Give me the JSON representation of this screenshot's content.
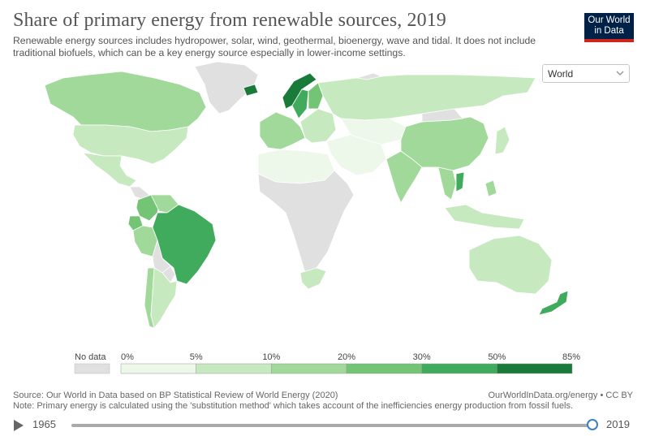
{
  "header": {
    "title": "Share of primary energy from renewable sources, 2019",
    "subtitle": "Renewable energy sources includes hydropower, solar, wind, geothermal, bioenergy, wave and tidal. It does not include traditional biofuels, which can be a key energy source especially in lower-income settings.",
    "logo_line1": "Our World",
    "logo_line2": "in Data"
  },
  "controls": {
    "entity_selected": "World"
  },
  "legend": {
    "no_data_label": "No data",
    "bins": [
      "0%",
      "5%",
      "10%",
      "20%",
      "30%",
      "50%",
      "85%"
    ],
    "colors": [
      "#eef8ea",
      "#c7e9c0",
      "#a1d99b",
      "#74c476",
      "#41ab5d",
      "#1a7a3a"
    ],
    "no_data_color": "#e0e0e0"
  },
  "footer": {
    "source": "Source: Our World in Data based on BP Statistical Review of World Energy (2020)",
    "url": "OurWorldInData.org/energy • CC BY",
    "note": "Note: Primary energy is calculated using the 'substitution method' which takes account of the inefficiencies energy production from fossil fuels."
  },
  "timeline": {
    "start_year": "1965",
    "end_year": "2019",
    "position": 1.0
  },
  "map_regions": [
    {
      "name": "canada",
      "level": 3
    },
    {
      "name": "united-states",
      "level": 2
    },
    {
      "name": "mexico",
      "level": 2
    },
    {
      "name": "central-america",
      "level": "none"
    },
    {
      "name": "colombia",
      "level": 4
    },
    {
      "name": "venezuela",
      "level": 3
    },
    {
      "name": "ecuador",
      "level": 4
    },
    {
      "name": "peru",
      "level": 3
    },
    {
      "name": "brazil",
      "level": 5
    },
    {
      "name": "bolivia",
      "level": "none"
    },
    {
      "name": "paraguay",
      "level": "none"
    },
    {
      "name": "chile",
      "level": 3
    },
    {
      "name": "argentina",
      "level": 2
    },
    {
      "name": "greenland",
      "level": "none"
    },
    {
      "name": "iceland",
      "level": 6
    },
    {
      "name": "norway",
      "level": 6
    },
    {
      "name": "sweden",
      "level": 5
    },
    {
      "name": "finland",
      "level": 4
    },
    {
      "name": "western-europe",
      "level": 3
    },
    {
      "name": "eastern-europe",
      "level": 2
    },
    {
      "name": "russia",
      "level": 2
    },
    {
      "name": "middle-east",
      "level": 1
    },
    {
      "name": "central-asia",
      "level": 1
    },
    {
      "name": "north-africa",
      "level": 1
    },
    {
      "name": "sub-saharan-africa",
      "level": "none"
    },
    {
      "name": "south-africa",
      "level": 2
    },
    {
      "name": "india",
      "level": 3
    },
    {
      "name": "china",
      "level": 3
    },
    {
      "name": "mongolia",
      "level": "none"
    },
    {
      "name": "southeast-asia",
      "level": 3
    },
    {
      "name": "vietnam",
      "level": 5
    },
    {
      "name": "japan",
      "level": 2
    },
    {
      "name": "indonesia",
      "level": 2
    },
    {
      "name": "philippines",
      "level": 3
    },
    {
      "name": "australia",
      "level": 2
    },
    {
      "name": "new-zealand",
      "level": 5
    },
    {
      "name": "antarctica-islands",
      "level": "none"
    }
  ]
}
